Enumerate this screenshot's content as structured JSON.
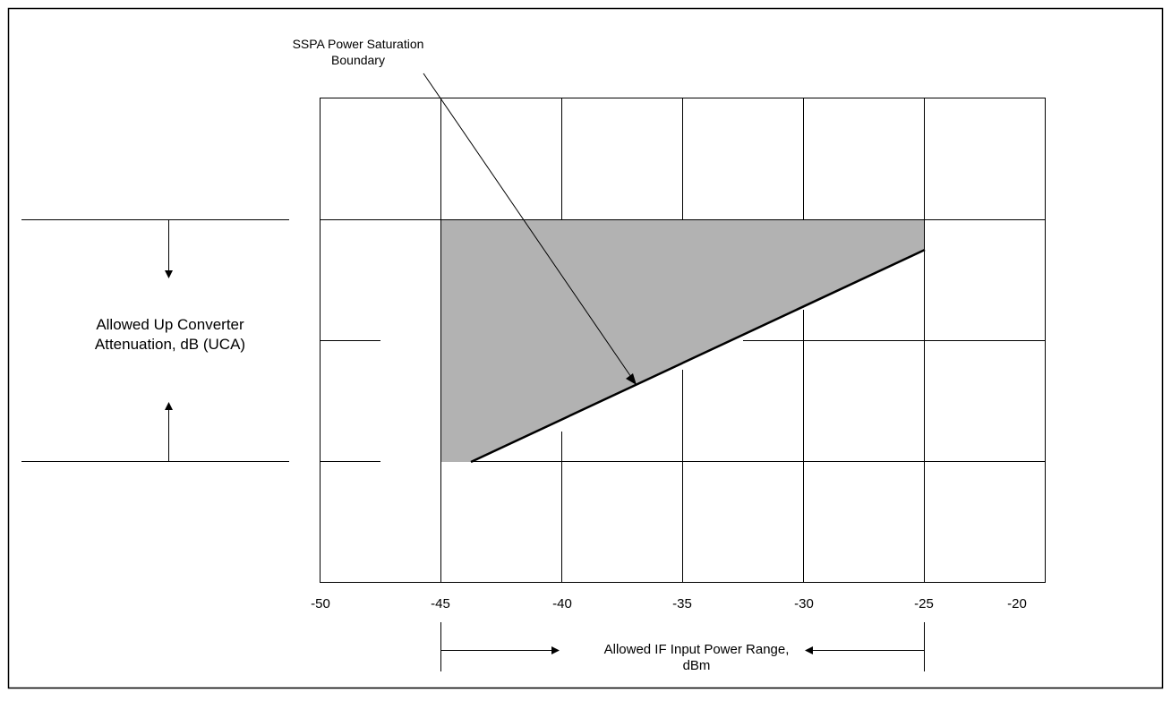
{
  "diagram": {
    "x_ticks": [
      "-50",
      "-45",
      "-40",
      "-35",
      "-30",
      "-25",
      "-20"
    ],
    "saturation_label": [
      "SSPA Power Saturation",
      "Boundary"
    ],
    "y_axis_label": [
      "Allowed Up Converter",
      "Attenuation, dB (UCA)"
    ],
    "x_range_label": [
      "Allowed IF Input Power Range,",
      "dBm"
    ],
    "colors": {
      "region_fill": "#b2b2b2",
      "lines": "#000000",
      "background": "#ffffff"
    }
  }
}
